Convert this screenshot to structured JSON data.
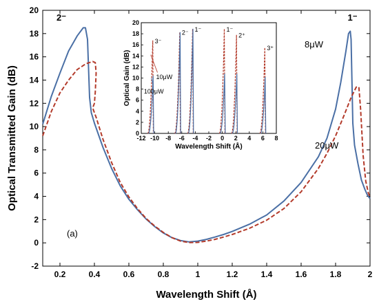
{
  "chart_data": [
    {
      "type": "line",
      "xlabel": "Wavelength Shift (Å)",
      "ylabel": "Optical Transmitted Gain (dB)",
      "xlim": [
        0.1,
        2.0
      ],
      "ylim": [
        -2,
        20
      ],
      "xticks": [
        "0.2",
        "0.4",
        "0.6",
        "0.8",
        "1",
        "1.2",
        "1.4",
        "1.6",
        "1.8",
        "2"
      ],
      "yticks": [
        "-2",
        "0",
        "2",
        "4",
        "6",
        "8",
        "10",
        "12",
        "14",
        "16",
        "18",
        "20"
      ],
      "panel_label": "(a)",
      "series": [
        {
          "name": "8μW",
          "color": "#4a6fa5",
          "style": "solid",
          "segments": [
            [
              [
                0.1,
                10.2
              ],
              [
                0.15,
                12.6
              ],
              [
                0.2,
                14.6
              ],
              [
                0.25,
                16.5
              ],
              [
                0.3,
                17.8
              ],
              [
                0.335,
                18.5
              ],
              [
                0.348,
                18.5
              ],
              [
                0.36,
                17.5
              ],
              [
                0.366,
                15.0
              ],
              [
                0.372,
                12.5
              ],
              [
                0.382,
                11.2
              ],
              [
                0.4,
                10.3
              ],
              [
                0.45,
                8.2
              ],
              [
                0.5,
                6.4
              ],
              [
                0.55,
                4.9
              ],
              [
                0.6,
                3.75
              ],
              [
                0.65,
                2.85
              ],
              [
                0.7,
                2.05
              ],
              [
                0.75,
                1.4
              ],
              [
                0.8,
                0.85
              ],
              [
                0.85,
                0.45
              ],
              [
                0.9,
                0.2
              ],
              [
                0.95,
                0.08
              ],
              [
                1.0,
                0.15
              ],
              [
                1.05,
                0.3
              ],
              [
                1.1,
                0.5
              ],
              [
                1.15,
                0.72
              ],
              [
                1.2,
                0.98
              ],
              [
                1.3,
                1.6
              ],
              [
                1.4,
                2.4
              ],
              [
                1.5,
                3.6
              ],
              [
                1.6,
                5.2
              ],
              [
                1.7,
                7.4
              ],
              [
                1.75,
                9.0
              ],
              [
                1.8,
                11.5
              ],
              [
                1.83,
                13.8
              ],
              [
                1.86,
                16.5
              ],
              [
                1.875,
                18.0
              ],
              [
                1.885,
                18.2
              ],
              [
                1.89,
                17.5
              ],
              [
                1.9,
                10.3
              ],
              [
                1.91,
                8.4
              ],
              [
                1.93,
                6.8
              ],
              [
                1.95,
                5.4
              ],
              [
                1.97,
                4.6
              ],
              [
                1.985,
                4.1
              ],
              [
                2.0,
                3.8
              ]
            ]
          ]
        },
        {
          "name": "20μW",
          "color": "#b33a2a",
          "style": "dashed",
          "segments": [
            [
              [
                0.1,
                9.2
              ],
              [
                0.15,
                11.3
              ],
              [
                0.2,
                12.9
              ],
              [
                0.25,
                14.0
              ],
              [
                0.3,
                14.9
              ],
              [
                0.35,
                15.4
              ],
              [
                0.39,
                15.6
              ],
              [
                0.405,
                15.5
              ],
              [
                0.41,
                14.6
              ],
              [
                0.405,
                13.0
              ],
              [
                0.4,
                12.0
              ],
              [
                0.39,
                11.6
              ],
              [
                0.41,
                10.8
              ],
              [
                0.45,
                8.9
              ],
              [
                0.5,
                6.9
              ],
              [
                0.55,
                5.2
              ],
              [
                0.6,
                3.95
              ],
              [
                0.65,
                2.95
              ],
              [
                0.7,
                2.1
              ],
              [
                0.75,
                1.45
              ],
              [
                0.8,
                0.9
              ],
              [
                0.85,
                0.45
              ],
              [
                0.9,
                0.15
              ],
              [
                0.95,
                0.02
              ],
              [
                1.0,
                0.04
              ],
              [
                1.05,
                0.15
              ],
              [
                1.1,
                0.3
              ],
              [
                1.15,
                0.5
              ],
              [
                1.2,
                0.72
              ],
              [
                1.3,
                1.25
              ],
              [
                1.4,
                1.95
              ],
              [
                1.5,
                2.95
              ],
              [
                1.6,
                4.4
              ],
              [
                1.7,
                6.4
              ],
              [
                1.75,
                7.7
              ],
              [
                1.8,
                9.2
              ],
              [
                1.85,
                11.0
              ],
              [
                1.89,
                12.5
              ],
              [
                1.92,
                13.4
              ],
              [
                1.935,
                13.4
              ],
              [
                1.945,
                11.5
              ],
              [
                1.96,
                7.5
              ],
              [
                1.975,
                5.3
              ],
              [
                1.99,
                4.3
              ],
              [
                2.0,
                3.9
              ]
            ]
          ]
        }
      ],
      "annotations": [
        {
          "text": "2⁻",
          "x": 0.18,
          "y": 19.1,
          "bold": true
        },
        {
          "text": "1⁻",
          "x": 1.87,
          "y": 19.1,
          "bold": true
        },
        {
          "text": "8μW",
          "x": 1.62,
          "y": 16.8,
          "bold": false
        },
        {
          "text": "20μW",
          "x": 1.68,
          "y": 8.1,
          "bold": false
        }
      ]
    },
    {
      "type": "line",
      "inset": true,
      "xlabel": "Wavelength Shift (Å)",
      "ylabel": "Optical  Gain (dB)",
      "xlim": [
        -12,
        8
      ],
      "ylim": [
        0,
        20
      ],
      "xticks": [
        "-12",
        "-10",
        "-8",
        "-6",
        "-4",
        "-2",
        "0",
        "2",
        "4",
        "6",
        "8"
      ],
      "yticks": [
        "0",
        "2",
        "4",
        "6",
        "8",
        "10",
        "12",
        "14",
        "16",
        "18",
        "20"
      ],
      "peaks": [
        {
          "center": -10.3,
          "blue": 10.4,
          "red": 16.8,
          "label": "3⁻"
        },
        {
          "center": -6.3,
          "blue": 18.3,
          "red": 18.3,
          "label": "2⁻"
        },
        {
          "center": -4.4,
          "blue": 18.9,
          "red": 18.9,
          "label": "1⁻"
        },
        {
          "center": 0.3,
          "blue": 10.8,
          "red": 18.9,
          "label": "1⁻"
        },
        {
          "center": 2.1,
          "blue": 10.8,
          "red": 17.8,
          "label": "2⁺"
        },
        {
          "center": 6.3,
          "blue": 10.2,
          "red": 15.5,
          "label": "3⁺"
        }
      ],
      "series": [
        {
          "name": "10μW",
          "color": "#b33a2a",
          "style": "dashed"
        },
        {
          "name": "100μW",
          "color": "#4a6fa5",
          "style": "solid"
        }
      ]
    }
  ]
}
